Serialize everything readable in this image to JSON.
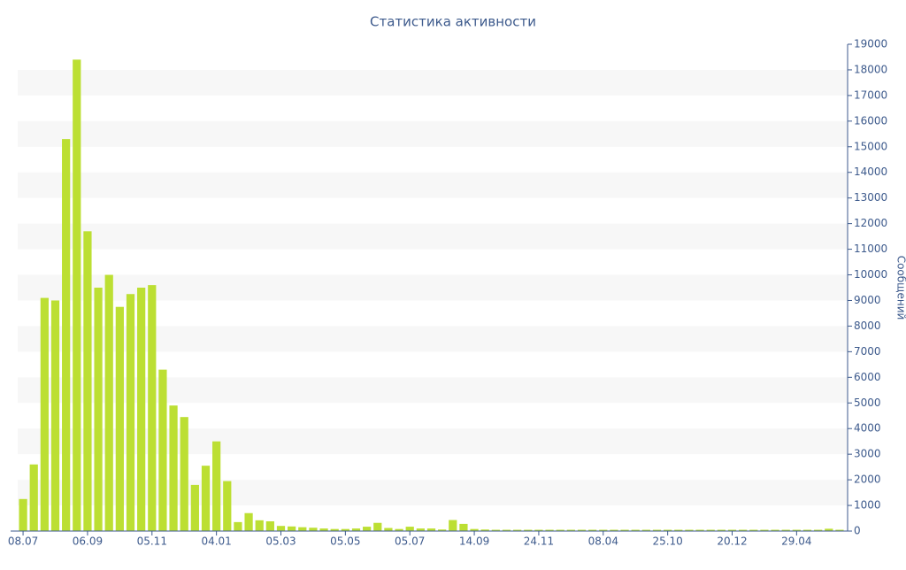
{
  "chart_data": {
    "type": "bar",
    "title": "Статистика активности",
    "y_label": "Сообщений",
    "color": "#bcdf33",
    "categories": [
      "08.07",
      null,
      null,
      null,
      null,
      null,
      "06.09",
      null,
      null,
      null,
      null,
      null,
      "05.11",
      null,
      null,
      null,
      null,
      null,
      "04.01",
      null,
      null,
      null,
      null,
      null,
      "05.03",
      null,
      null,
      null,
      null,
      null,
      "05.05",
      null,
      null,
      null,
      null,
      null,
      "05.07",
      null,
      null,
      null,
      null,
      null,
      "14.09",
      null,
      null,
      null,
      null,
      null,
      "24.11",
      null,
      null,
      null,
      null,
      null,
      "08.04",
      null,
      null,
      null,
      null,
      null,
      "25.10",
      null,
      null,
      null,
      null,
      null,
      "20.12",
      null,
      null,
      null,
      null,
      null,
      "29.04",
      null,
      null,
      null,
      null
    ],
    "values": [
      1250,
      2600,
      9100,
      9000,
      15300,
      18400,
      11700,
      9500,
      10000,
      8750,
      9250,
      9500,
      9600,
      6300,
      4900,
      4450,
      1800,
      2550,
      3500,
      1950,
      350,
      700,
      420,
      380,
      200,
      180,
      150,
      130,
      100,
      80,
      80,
      100,
      170,
      320,
      120,
      80,
      170,
      100,
      100,
      60,
      430,
      280,
      80,
      60,
      50,
      50,
      50,
      50,
      50,
      50,
      50,
      50,
      50,
      50,
      50,
      50,
      50,
      50,
      50,
      50,
      50,
      50,
      50,
      50,
      50,
      50,
      50,
      50,
      50,
      50,
      50,
      50,
      50,
      50,
      50,
      90,
      50
    ],
    "ylim": [
      0,
      19000
    ],
    "yticks": [
      0,
      1000,
      2000,
      3000,
      4000,
      5000,
      6000,
      7000,
      8000,
      9000,
      10000,
      11000,
      12000,
      13000,
      14000,
      15000,
      16000,
      17000,
      18000,
      19000
    ],
    "y_axis_side": "right",
    "banded_grid": true
  }
}
